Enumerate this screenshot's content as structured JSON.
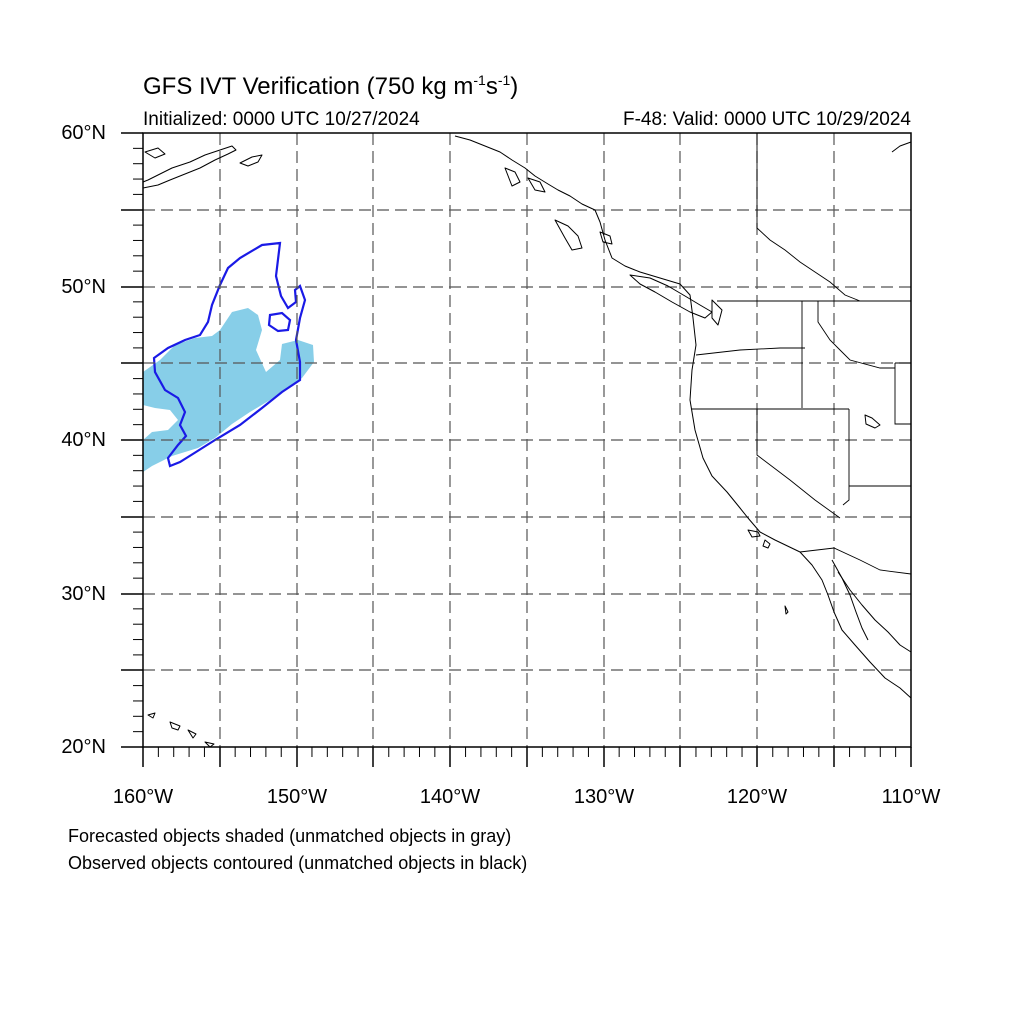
{
  "header": {
    "title_prefix": "GFS IVT Verification (750 kg m",
    "title_exp1": "-1",
    "title_mid": "s",
    "title_exp2": "-1",
    "title_suffix": ")",
    "initialized": "Initialized: 0000 UTC 10/27/2024",
    "valid": "F-48: Valid: 0000 UTC 10/29/2024"
  },
  "axes": {
    "lat_labels": [
      "60°N",
      "50°N",
      "40°N",
      "30°N",
      "20°N"
    ],
    "lon_labels": [
      "160°W",
      "150°W",
      "140°W",
      "130°W",
      "120°W",
      "110°W"
    ],
    "lat_range": [
      20,
      60
    ],
    "lon_range": [
      -160,
      -110
    ],
    "grid": "dashed every 5°"
  },
  "legend": {
    "line1": "Forecasted objects shaded (unmatched objects in gray)",
    "line2": "Observed objects contoured (unmatched objects in black)"
  },
  "colors": {
    "forecast_fill": "#87CEE8",
    "observed_contour": "#1a1ae6",
    "coastline": "#000000",
    "grid": "#555555"
  }
}
